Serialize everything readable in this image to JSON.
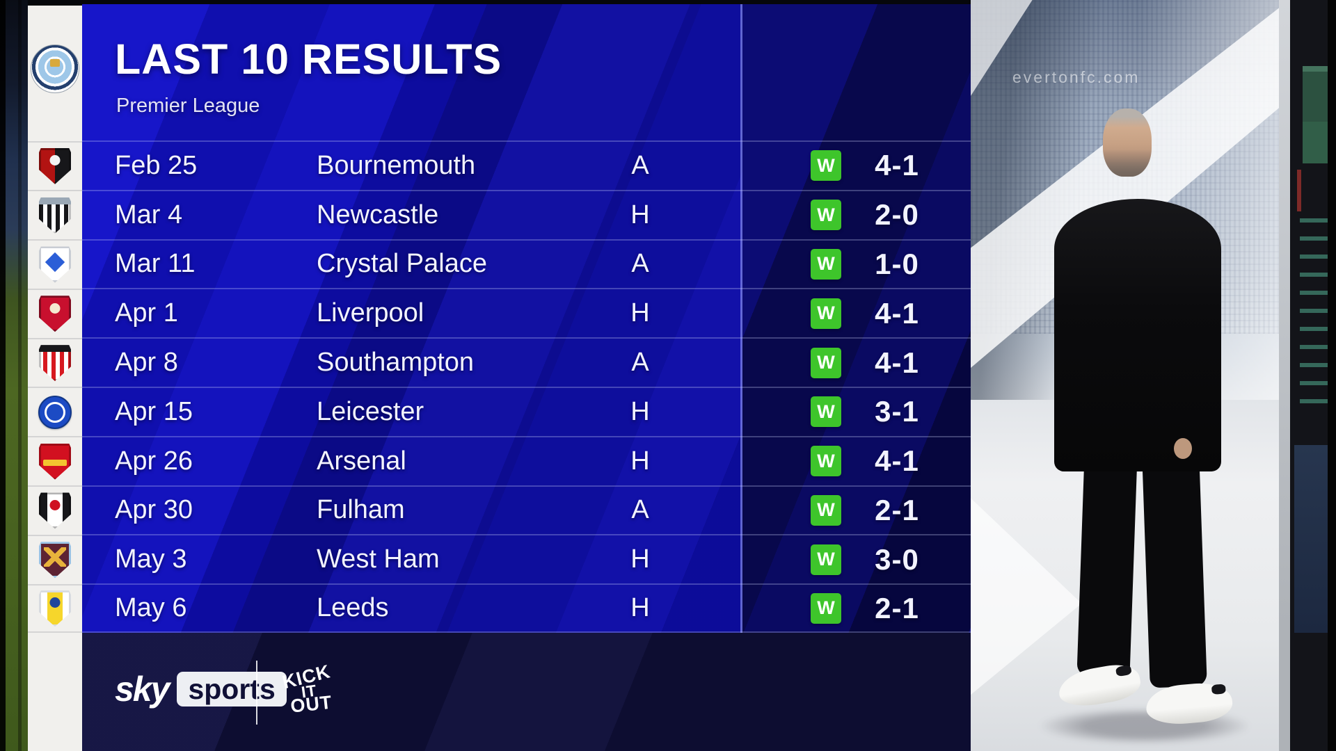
{
  "header": {
    "title": "LAST 10 RESULTS",
    "subtitle": "Premier League"
  },
  "club": {
    "name": "Manchester City"
  },
  "table": {
    "results": [
      {
        "date": "Feb 25",
        "opponent": "Bournemouth",
        "venue": "A",
        "result": "W",
        "score": "4-1",
        "badge": "bournemouth"
      },
      {
        "date": "Mar 4",
        "opponent": "Newcastle",
        "venue": "H",
        "result": "W",
        "score": "2-0",
        "badge": "newcastle"
      },
      {
        "date": "Mar 11",
        "opponent": "Crystal Palace",
        "venue": "A",
        "result": "W",
        "score": "1-0",
        "badge": "crystal-palace"
      },
      {
        "date": "Apr 1",
        "opponent": "Liverpool",
        "venue": "H",
        "result": "W",
        "score": "4-1",
        "badge": "liverpool"
      },
      {
        "date": "Apr 8",
        "opponent": "Southampton",
        "venue": "A",
        "result": "W",
        "score": "4-1",
        "badge": "southampton"
      },
      {
        "date": "Apr 15",
        "opponent": "Leicester",
        "venue": "H",
        "result": "W",
        "score": "3-1",
        "badge": "leicester"
      },
      {
        "date": "Apr 26",
        "opponent": "Arsenal",
        "venue": "H",
        "result": "W",
        "score": "4-1",
        "badge": "arsenal"
      },
      {
        "date": "Apr 30",
        "opponent": "Fulham",
        "venue": "A",
        "result": "W",
        "score": "2-1",
        "badge": "fulham"
      },
      {
        "date": "May 3",
        "opponent": "West Ham",
        "venue": "H",
        "result": "W",
        "score": "3-0",
        "badge": "west-ham"
      },
      {
        "date": "May 6",
        "opponent": "Leeds",
        "venue": "H",
        "result": "W",
        "score": "2-1",
        "badge": "leeds"
      }
    ]
  },
  "footer": {
    "sky_word": "sky",
    "sports_word": "sports",
    "kio_lines": [
      "KICK",
      "IT",
      "OUT"
    ]
  },
  "backdrop": {
    "stadium_ad": "evertonfc.com"
  },
  "colors": {
    "win_green": "#3ec52b",
    "panel_blue": "#1514c2",
    "panel_dark_navy": "#0b0b66",
    "footer_navy": "#0d0d31",
    "strip_white": "#f1f0ed",
    "photo_bg": "#e8eaec",
    "text_white": "#f2f3ff"
  },
  "badges": {
    "bournemouth": {
      "shape": "shield",
      "pattern": "halves",
      "accent": "dot",
      "c1": "#b21312",
      "c2": "#17171a",
      "c3": "#f3f3f3",
      "cb": "rgba(0,0,0,.3)"
    },
    "newcastle": {
      "shape": "shield",
      "pattern": "stripes",
      "accent": "topband",
      "c1": "#17171a",
      "c2": "#ffffff",
      "c3": "#9aa8b5",
      "cb": "rgba(0,0,0,.25)"
    },
    "crystal-palace": {
      "shape": "shield",
      "pattern": "solid",
      "accent": "diamond",
      "c1": "#ffffff",
      "c2": "#ffffff",
      "c3": "#2b5ed7",
      "cb": "#c9cdd4"
    },
    "liverpool": {
      "shape": "shield",
      "pattern": "solid",
      "accent": "dot",
      "c1": "#c8102e",
      "c2": "#c8102e",
      "c3": "#f5e9d0",
      "cb": "#7e0a1e"
    },
    "southampton": {
      "shape": "shield",
      "pattern": "stripes",
      "accent": "topband",
      "c1": "#ffffff",
      "c2": "#d71920",
      "c3": "#17171a",
      "cb": "rgba(0,0,0,.25)"
    },
    "leicester": {
      "shape": "circle",
      "pattern": "solid",
      "accent": "ring",
      "c1": "#1c4bc4",
      "c2": "#1c4bc4",
      "c3": "#ffffff",
      "cb": "#123787"
    },
    "arsenal": {
      "shape": "shield",
      "pattern": "solid",
      "accent": "bar",
      "c1": "#d21020",
      "c2": "#d21020",
      "c3": "#f3c430",
      "cb": "#a00a16"
    },
    "fulham": {
      "shape": "shield",
      "pattern": "band",
      "accent": "dot",
      "c1": "#17171a",
      "c2": "#ffffff",
      "c3": "#cf1020",
      "cb": "rgba(0,0,0,.3)"
    },
    "west-ham": {
      "shape": "shield",
      "pattern": "solid",
      "accent": "x",
      "c1": "#5d2333",
      "c2": "#5d2333",
      "c3": "#e8b33c",
      "cb": "#9ac3e6"
    },
    "leeds": {
      "shape": "shield",
      "pattern": "band",
      "accent": "dot",
      "c1": "#ffffff",
      "c2": "#f6d62b",
      "c3": "#20469b",
      "cb": "#d8dbe0"
    }
  }
}
